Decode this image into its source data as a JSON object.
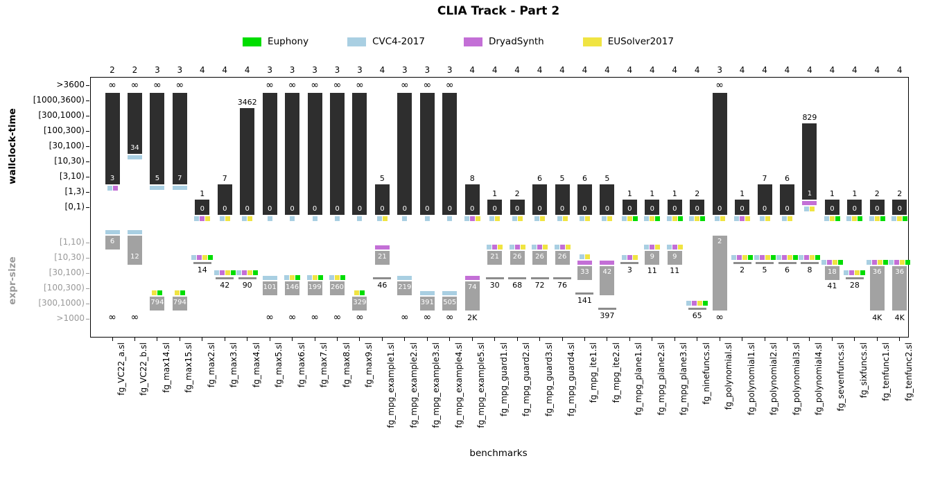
{
  "chart_data": {
    "type": "bar",
    "title": "CLIA Track - Part 2",
    "xlabel": "benchmarks",
    "panels": {
      "time_label": "wallclock-time",
      "size_label": "expr-size"
    },
    "time_brackets": [
      ">3600",
      "[1000,3600)",
      "[300,1000)",
      "[100,300)",
      "[30,100)",
      "[10,30)",
      "[3,10)",
      "[1,3)",
      "[0,1)"
    ],
    "size_brackets": [
      "[1,10)",
      "[10,30)",
      "[30,100)",
      "[100,300)",
      "[300,1000)",
      ">1000"
    ],
    "legend": [
      {
        "label": "Euphony",
        "key": "eu"
      },
      {
        "label": "CVC4-2017",
        "key": "cvc"
      },
      {
        "label": "DryadSynth",
        "key": "dry"
      },
      {
        "label": "EUSolver2017",
        "key": "eus"
      }
    ],
    "colors": {
      "eu": "#00dd00",
      "cvc": "#a9cfe2",
      "dry": "#c36fd6",
      "eus": "#f0e442",
      "time_bar": "#2e2e2e",
      "size_bar": "#a2a2a2",
      "rule": "#8c8c8c"
    },
    "benchmarks": [
      {
        "name": "fg_VC22_a.sl",
        "count": "2",
        "time": {
          "top": "∞",
          "bar": [
            1,
            6
          ],
          "inner": "3",
          "chips": [
            "cvc",
            "dry"
          ]
        },
        "size": {
          "bar": [
            0,
            0
          ],
          "inner": "6",
          "irow": 0,
          "cap": "cvc",
          "bottom": "∞"
        }
      },
      {
        "name": "fg_VC22_b.sl",
        "count": "2",
        "time": {
          "top": "∞",
          "bar": [
            1,
            4
          ],
          "inner": "34",
          "cap": "cvc"
        },
        "size": {
          "bar": [
            0,
            1
          ],
          "inner": "12",
          "irow": 1,
          "cap": "cvc",
          "bottom": "∞"
        }
      },
      {
        "name": "fg_max14.sl",
        "count": "3",
        "time": {
          "top": "∞",
          "bar": [
            1,
            6
          ],
          "inner": "5",
          "cap": "cvc"
        },
        "size": {
          "bar": [
            4,
            4
          ],
          "inner": "794",
          "irow": 4,
          "chips": [
            "eus",
            "eu"
          ]
        }
      },
      {
        "name": "fg_max15.sl",
        "count": "3",
        "time": {
          "top": "∞",
          "bar": [
            1,
            6
          ],
          "inner": "7",
          "cap": "cvc"
        },
        "size": {
          "bar": [
            4,
            4
          ],
          "inner": "794",
          "irow": 4,
          "chips": [
            "eus",
            "eu"
          ]
        }
      },
      {
        "name": "fg_max2.sl",
        "count": "4",
        "time": {
          "top": "1",
          "bar": [
            8,
            8
          ],
          "inner": "0",
          "chips": [
            "cvc",
            "dry",
            "eus"
          ]
        },
        "size": {
          "rule": 1,
          "below": "14",
          "chips": [
            "cvc",
            "dry",
            "eus",
            "eu"
          ]
        }
      },
      {
        "name": "fg_max3.sl",
        "count": "4",
        "time": {
          "top": "7",
          "bar": [
            7,
            8
          ],
          "inner": "0",
          "chips": [
            "cvc",
            "eus"
          ]
        },
        "size": {
          "rule": 2,
          "below": "42",
          "chips": [
            "cvc",
            "dry",
            "eus",
            "eu"
          ]
        }
      },
      {
        "name": "fg_max4.sl",
        "count": "4",
        "time": {
          "top": "3462",
          "bar": [
            2,
            8
          ],
          "inner": "0",
          "chips": [
            "cvc",
            "eus"
          ]
        },
        "size": {
          "rule": 2,
          "below": "90",
          "chips": [
            "cvc",
            "dry",
            "eus",
            "eu"
          ]
        }
      },
      {
        "name": "fg_max5.sl",
        "count": "3",
        "time": {
          "top": "∞",
          "bar": [
            1,
            8
          ],
          "inner": "0",
          "chips": [
            "cvc"
          ]
        },
        "size": {
          "bar": [
            3,
            3
          ],
          "inner": "101",
          "irow": 3,
          "cap": "cvc",
          "bottom": "∞"
        }
      },
      {
        "name": "fg_max6.sl",
        "count": "3",
        "time": {
          "top": "∞",
          "bar": [
            1,
            8
          ],
          "inner": "0",
          "chips": [
            "cvc"
          ]
        },
        "size": {
          "bar": [
            3,
            3
          ],
          "inner": "146",
          "irow": 3,
          "chips": [
            "cvc",
            "eus",
            "eu"
          ],
          "bottom": "∞"
        }
      },
      {
        "name": "fg_max7.sl",
        "count": "3",
        "time": {
          "top": "∞",
          "bar": [
            1,
            8
          ],
          "inner": "0",
          "chips": [
            "cvc"
          ]
        },
        "size": {
          "bar": [
            3,
            3
          ],
          "inner": "199",
          "irow": 3,
          "chips": [
            "cvc",
            "eus",
            "eu"
          ],
          "bottom": "∞"
        }
      },
      {
        "name": "fg_max8.sl",
        "count": "3",
        "time": {
          "top": "∞",
          "bar": [
            1,
            8
          ],
          "inner": "0",
          "chips": [
            "cvc"
          ]
        },
        "size": {
          "bar": [
            3,
            3
          ],
          "inner": "260",
          "irow": 3,
          "chips": [
            "cvc",
            "eus",
            "eu"
          ],
          "bottom": "∞"
        }
      },
      {
        "name": "fg_max9.sl",
        "count": "3",
        "time": {
          "top": "∞",
          "bar": [
            1,
            8
          ],
          "inner": "0",
          "chips": [
            "cvc"
          ]
        },
        "size": {
          "bar": [
            4,
            4
          ],
          "inner": "329",
          "irow": 4,
          "chips": [
            "eus",
            "eu"
          ],
          "bottom": "∞"
        }
      },
      {
        "name": "fg_mpg_example1.sl",
        "count": "4",
        "time": {
          "top": "5",
          "bar": [
            7,
            8
          ],
          "inner": "0",
          "chips": [
            "cvc",
            "eus"
          ]
        },
        "size": {
          "bar": [
            1,
            1
          ],
          "inner": "21",
          "irow": 1,
          "cap": "dry",
          "rule": 2,
          "below": "46"
        }
      },
      {
        "name": "fg_mpg_example2.sl",
        "count": "3",
        "time": {
          "top": "∞",
          "bar": [
            1,
            8
          ],
          "inner": "0",
          "chips": [
            "cvc"
          ]
        },
        "size": {
          "bar": [
            3,
            3
          ],
          "inner": "219",
          "irow": 3,
          "cap": "cvc",
          "bottom": "∞"
        }
      },
      {
        "name": "fg_mpg_example3.sl",
        "count": "3",
        "time": {
          "top": "∞",
          "bar": [
            1,
            8
          ],
          "inner": "0",
          "chips": [
            "cvc"
          ]
        },
        "size": {
          "bar": [
            4,
            4
          ],
          "inner": "391",
          "irow": 4,
          "cap": "cvc",
          "bottom": "∞"
        }
      },
      {
        "name": "fg_mpg_example4.sl",
        "count": "3",
        "time": {
          "top": "∞",
          "bar": [
            1,
            8
          ],
          "inner": "0",
          "chips": [
            "cvc"
          ]
        },
        "size": {
          "bar": [
            4,
            4
          ],
          "inner": "505",
          "irow": 4,
          "cap": "cvc",
          "bottom": "∞"
        }
      },
      {
        "name": "fg_mpg_example5.sl",
        "count": "4",
        "time": {
          "top": "8",
          "bar": [
            7,
            8
          ],
          "inner": "0",
          "chips": [
            "cvc",
            "dry",
            "eus"
          ]
        },
        "size": {
          "bar": [
            3,
            4
          ],
          "inner": "74",
          "irow": 3,
          "cap": "dry",
          "bottom": "2K"
        }
      },
      {
        "name": "fg_mpg_guard1.sl",
        "count": "4",
        "time": {
          "top": "1",
          "bar": [
            8,
            8
          ],
          "inner": "0",
          "chips": [
            "cvc",
            "eus"
          ]
        },
        "size": {
          "bar": [
            1,
            1
          ],
          "inner": "21",
          "irow": 1,
          "chips": [
            "cvc",
            "dry",
            "eus"
          ],
          "rule": 2,
          "below": "30"
        }
      },
      {
        "name": "fg_mpg_guard2.sl",
        "count": "4",
        "time": {
          "top": "2",
          "bar": [
            8,
            8
          ],
          "inner": "0",
          "chips": [
            "cvc",
            "eus"
          ]
        },
        "size": {
          "bar": [
            1,
            1
          ],
          "inner": "26",
          "irow": 1,
          "chips": [
            "cvc",
            "dry",
            "eus"
          ],
          "rule": 2,
          "below": "68"
        }
      },
      {
        "name": "fg_mpg_guard3.sl",
        "count": "4",
        "time": {
          "top": "6",
          "bar": [
            7,
            8
          ],
          "inner": "0",
          "chips": [
            "cvc",
            "eus"
          ]
        },
        "size": {
          "bar": [
            1,
            1
          ],
          "inner": "26",
          "irow": 1,
          "chips": [
            "cvc",
            "dry",
            "eus"
          ],
          "rule": 2,
          "below": "72"
        }
      },
      {
        "name": "fg_mpg_guard4.sl",
        "count": "4",
        "time": {
          "top": "5",
          "bar": [
            7,
            8
          ],
          "inner": "0",
          "chips": [
            "cvc",
            "eus"
          ]
        },
        "size": {
          "bar": [
            1,
            1
          ],
          "inner": "26",
          "irow": 1,
          "chips": [
            "cvc",
            "dry",
            "eus"
          ],
          "rule": 2,
          "below": "76"
        }
      },
      {
        "name": "fg_mpg_ite1.sl",
        "count": "4",
        "time": {
          "top": "6",
          "bar": [
            7,
            8
          ],
          "inner": "0",
          "chips": [
            "cvc",
            "eus"
          ]
        },
        "size": {
          "bar": [
            2,
            2
          ],
          "inner": "33",
          "irow": 2,
          "cap": "dry",
          "chips": [
            "cvc",
            "eus"
          ],
          "rule": 3,
          "below": "141"
        }
      },
      {
        "name": "fg_mpg_ite2.sl",
        "count": "4",
        "time": {
          "top": "5",
          "bar": [
            7,
            8
          ],
          "inner": "0",
          "chips": [
            "cvc",
            "eus"
          ]
        },
        "size": {
          "bar": [
            2,
            3
          ],
          "inner": "42",
          "irow": 2,
          "cap": "dry",
          "rule": 4,
          "below": "397"
        }
      },
      {
        "name": "fg_mpg_plane1.sl",
        "count": "4",
        "time": {
          "top": "1",
          "bar": [
            8,
            8
          ],
          "inner": "0",
          "chips": [
            "cvc",
            "eus",
            "eu"
          ]
        },
        "size": {
          "rule": 1,
          "below": "3",
          "chips": [
            "cvc",
            "dry",
            "eus"
          ]
        }
      },
      {
        "name": "fg_mpg_plane2.sl",
        "count": "4",
        "time": {
          "top": "1",
          "bar": [
            8,
            8
          ],
          "inner": "0",
          "chips": [
            "cvc",
            "eus",
            "eu"
          ]
        },
        "size": {
          "bar": [
            1,
            1
          ],
          "inner": "9",
          "irow": 1,
          "chips": [
            "cvc",
            "dry",
            "eus"
          ],
          "below": "11"
        }
      },
      {
        "name": "fg_mpg_plane3.sl",
        "count": "4",
        "time": {
          "top": "1",
          "bar": [
            8,
            8
          ],
          "inner": "0",
          "chips": [
            "cvc",
            "eus",
            "eu"
          ]
        },
        "size": {
          "bar": [
            1,
            1
          ],
          "inner": "9",
          "irow": 1,
          "chips": [
            "cvc",
            "dry",
            "eus"
          ],
          "below": "11"
        }
      },
      {
        "name": "fg_ninefuncs.sl",
        "count": "4",
        "time": {
          "top": "2",
          "bar": [
            8,
            8
          ],
          "inner": "0",
          "chips": [
            "cvc",
            "eus",
            "eu"
          ]
        },
        "size": {
          "rule": 4,
          "below": "65",
          "chips": [
            "cvc",
            "dry",
            "eus",
            "eu"
          ]
        }
      },
      {
        "name": "fg_polynomial.sl",
        "count": "3",
        "time": {
          "top": "∞",
          "bar": [
            1,
            8
          ],
          "inner": "0",
          "chips": [
            "cvc",
            "eus"
          ]
        },
        "size": {
          "bar": [
            0,
            4
          ],
          "inner": "2",
          "irow": 0,
          "bottom": "∞"
        }
      },
      {
        "name": "fg_polynomial1.sl",
        "count": "4",
        "time": {
          "top": "1",
          "bar": [
            8,
            8
          ],
          "inner": "0",
          "chips": [
            "cvc",
            "dry",
            "eus"
          ]
        },
        "size": {
          "rule": 1,
          "below": "2",
          "chips": [
            "cvc",
            "dry",
            "eus",
            "eu"
          ]
        }
      },
      {
        "name": "fg_polynomial2.sl",
        "count": "4",
        "time": {
          "top": "7",
          "bar": [
            7,
            8
          ],
          "inner": "0",
          "chips": [
            "cvc",
            "eus"
          ]
        },
        "size": {
          "rule": 1,
          "below": "5",
          "chips": [
            "cvc",
            "dry",
            "eus",
            "eu"
          ]
        }
      },
      {
        "name": "fg_polynomial3.sl",
        "count": "4",
        "time": {
          "top": "6",
          "bar": [
            7,
            8
          ],
          "inner": "0",
          "chips": [
            "cvc",
            "eus"
          ]
        },
        "size": {
          "rule": 1,
          "below": "6",
          "chips": [
            "cvc",
            "dry",
            "eus",
            "eu"
          ]
        }
      },
      {
        "name": "fg_polynomial4.sl",
        "count": "4",
        "time": {
          "top": "829",
          "bar": [
            3,
            7
          ],
          "inner": "1",
          "cap": "dry",
          "chips": [
            "cvc",
            "eus"
          ]
        },
        "size": {
          "rule": 1,
          "below": "8",
          "chips": [
            "cvc",
            "dry",
            "eus",
            "eu"
          ]
        }
      },
      {
        "name": "fg_sevenfuncs.sl",
        "count": "4",
        "time": {
          "top": "1",
          "bar": [
            8,
            8
          ],
          "inner": "0",
          "chips": [
            "cvc",
            "eus",
            "eu"
          ]
        },
        "size": {
          "bar": [
            2,
            2
          ],
          "inner": "18",
          "irow": 2,
          "chips": [
            "cvc",
            "dry",
            "eus",
            "eu"
          ],
          "below": "41"
        }
      },
      {
        "name": "fg_sixfuncs.sl",
        "count": "4",
        "time": {
          "top": "1",
          "bar": [
            8,
            8
          ],
          "inner": "0",
          "chips": [
            "cvc",
            "eus",
            "eu"
          ]
        },
        "size": {
          "rule": 2,
          "below": "28",
          "chips": [
            "cvc",
            "dry",
            "eus",
            "eu"
          ]
        }
      },
      {
        "name": "fg_tenfunc1.sl",
        "count": "4",
        "time": {
          "top": "2",
          "bar": [
            8,
            8
          ],
          "inner": "0",
          "chips": [
            "cvc",
            "eus",
            "eu"
          ]
        },
        "size": {
          "bar": [
            2,
            4
          ],
          "inner": "36",
          "irow": 2,
          "chips": [
            "cvc",
            "dry",
            "eus",
            "eu"
          ],
          "bottom": "4K"
        }
      },
      {
        "name": "fg_tenfunc2.sl",
        "count": "4",
        "time": {
          "top": "2",
          "bar": [
            8,
            8
          ],
          "inner": "0",
          "chips": [
            "cvc",
            "eus",
            "eu"
          ]
        },
        "size": {
          "bar": [
            2,
            4
          ],
          "inner": "36",
          "irow": 2,
          "chips": [
            "cvc",
            "dry",
            "eus",
            "eu"
          ],
          "bottom": "4K"
        }
      }
    ]
  }
}
